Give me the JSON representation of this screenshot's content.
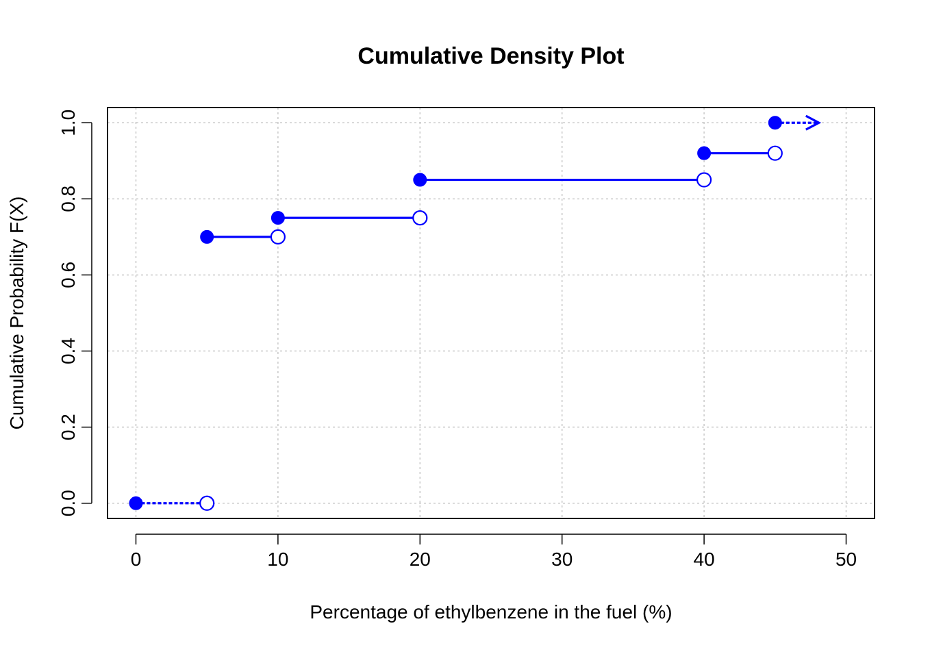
{
  "chart_data": {
    "type": "line",
    "subtype": "step-cdf",
    "title": "Cumulative Density Plot",
    "xlabel": "Percentage of ethylbenzene in the fuel (%)",
    "ylabel": "Cumulative Probability F(X)",
    "xlim": [
      -2,
      52
    ],
    "ylim": [
      -0.04,
      1.04
    ],
    "xticks": [
      0,
      10,
      20,
      30,
      40,
      50
    ],
    "yticks": [
      0.0,
      0.2,
      0.4,
      0.6,
      0.8,
      1.0
    ],
    "xtick_labels": [
      "0",
      "10",
      "20",
      "30",
      "40",
      "50"
    ],
    "ytick_labels": [
      "0.0",
      "0.2",
      "0.4",
      "0.6",
      "0.8",
      "1.0"
    ],
    "grid": true,
    "steps": [
      {
        "x_start": 0,
        "x_end": 5,
        "y": 0.0
      },
      {
        "x_start": 5,
        "x_end": 10,
        "y": 0.7
      },
      {
        "x_start": 10,
        "x_end": 20,
        "y": 0.75
      },
      {
        "x_start": 20,
        "x_end": 40,
        "y": 0.85
      },
      {
        "x_start": 40,
        "x_end": 45,
        "y": 0.92
      },
      {
        "x_start": 45,
        "x_end": null,
        "y": 1.0
      }
    ],
    "colors": {
      "series": "#0000ff",
      "grid": "#c8c8c8"
    }
  }
}
